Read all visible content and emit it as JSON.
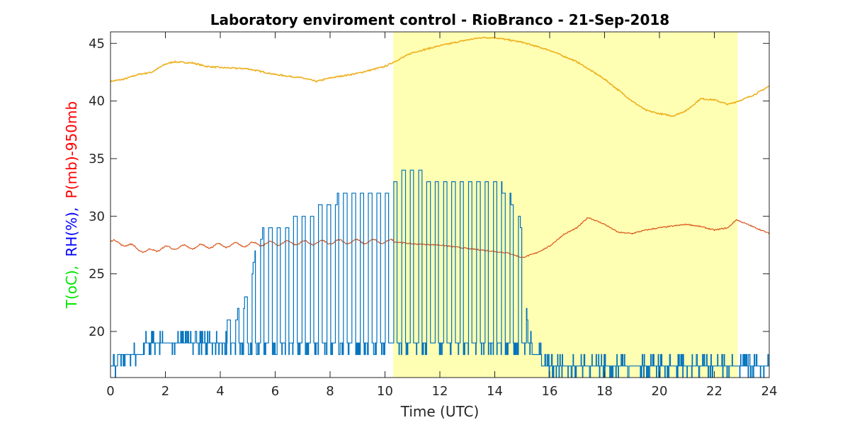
{
  "chart_data": {
    "type": "line",
    "title": "Laboratory enviroment control - RioBranco - 21-Sep-2018",
    "xlabel": "Time (UTC)",
    "ylabel_parts": [
      {
        "text": "T(oC),",
        "color": "#00e600"
      },
      {
        "text": "RH(%),",
        "color": "#0000ff"
      },
      {
        "text": "P(mb)-950mb",
        "color": "#ff0000"
      }
    ],
    "xlim": [
      0,
      24
    ],
    "ylim": [
      16,
      46
    ],
    "xticks": [
      "0",
      "2",
      "4",
      "6",
      "8",
      "10",
      "12",
      "14",
      "16",
      "18",
      "20",
      "22",
      "24"
    ],
    "yticks": [
      "20",
      "25",
      "30",
      "35",
      "40",
      "45"
    ],
    "shaded_region": {
      "x": [
        10.3,
        22.85
      ],
      "color": "#ffffb3"
    },
    "series": [
      {
        "color": "#edb120",
        "x": [
          0,
          0.5,
          1.0,
          1.5,
          2.0,
          2.3,
          3.0,
          3.5,
          4.0,
          5.0,
          6.0,
          7.0,
          7.5,
          8.0,
          9.0,
          10.0,
          10.5,
          11.0,
          12.0,
          13.0,
          13.5,
          14.0,
          14.5,
          15.0,
          16.0,
          17.0,
          18.0,
          19.0,
          19.5,
          20.0,
          20.5,
          21.0,
          21.5,
          22.0,
          22.5,
          23.0,
          23.5,
          24.0
        ],
        "values": [
          41.7,
          41.9,
          42.3,
          42.5,
          43.2,
          43.4,
          43.3,
          43.0,
          42.9,
          42.8,
          42.3,
          42.0,
          41.7,
          42.0,
          42.4,
          43.0,
          43.6,
          44.2,
          44.8,
          45.3,
          45.5,
          45.5,
          45.3,
          45.1,
          44.4,
          43.4,
          41.9,
          40.0,
          39.2,
          38.9,
          38.7,
          39.2,
          40.2,
          40.1,
          39.7,
          40.1,
          40.6,
          41.3
        ]
      },
      {
        "color": "#d95319",
        "x": [
          0,
          0.5,
          1.0,
          1.3,
          1.8,
          2.5,
          3.5,
          4.5,
          5.5,
          6.5,
          7.5,
          8.5,
          9.5,
          10.3,
          11.0,
          12.0,
          13.0,
          13.8,
          14.5,
          15.0,
          15.5,
          16.0,
          16.5,
          17.0,
          17.4,
          18.0,
          18.5,
          19.0,
          19.5,
          20.0,
          21.0,
          21.5,
          22.0,
          22.5,
          22.8,
          23.2,
          23.8,
          24.0
        ],
        "values": [
          27.8,
          27.6,
          27.2,
          26.9,
          27.2,
          27.3,
          27.4,
          27.5,
          27.6,
          27.7,
          27.7,
          27.8,
          27.8,
          27.8,
          27.6,
          27.5,
          27.2,
          27.0,
          26.8,
          26.4,
          26.8,
          27.4,
          28.4,
          29.0,
          29.9,
          29.3,
          28.6,
          28.5,
          28.8,
          29.0,
          29.3,
          29.1,
          28.8,
          29.0,
          29.7,
          29.3,
          28.7,
          28.5
        ]
      },
      {
        "color": "#0072bd",
        "style": "oscillating-step",
        "x": [
          0,
          0.5,
          1.0,
          1.5,
          2.0,
          3.0,
          4.0,
          4.5,
          5.0,
          5.3,
          5.6,
          6.0,
          7.0,
          8.0,
          8.5,
          9.0,
          10.0,
          10.3,
          10.6,
          11.0,
          12.0,
          13.0,
          13.5,
          14.0,
          14.5,
          15.0,
          15.2,
          15.5,
          15.6,
          15.8,
          16.0,
          17.0,
          17.5,
          18.0,
          19.0,
          20.0,
          21.0,
          22.0,
          22.6,
          22.9,
          23.3,
          24.0
        ],
        "values": [
          17,
          18,
          18,
          19,
          19,
          19,
          19,
          19,
          19,
          19,
          19,
          19,
          19,
          19,
          19,
          19,
          19,
          19,
          19,
          19,
          19,
          19,
          19,
          19,
          19,
          19,
          19,
          18,
          18,
          17,
          17,
          17,
          17,
          16.5,
          17,
          17,
          17,
          17,
          17,
          16.5,
          17,
          17
        ],
        "peaks": [
          17,
          18,
          18,
          19,
          19,
          19,
          20,
          21,
          23,
          27,
          29,
          29,
          30,
          31,
          32,
          32,
          32,
          33,
          34,
          34,
          33,
          33,
          33,
          33,
          32,
          29,
          20,
          19,
          19,
          18,
          17,
          17,
          17,
          17,
          17,
          17,
          17,
          17,
          17,
          17,
          17,
          17
        ]
      }
    ]
  }
}
